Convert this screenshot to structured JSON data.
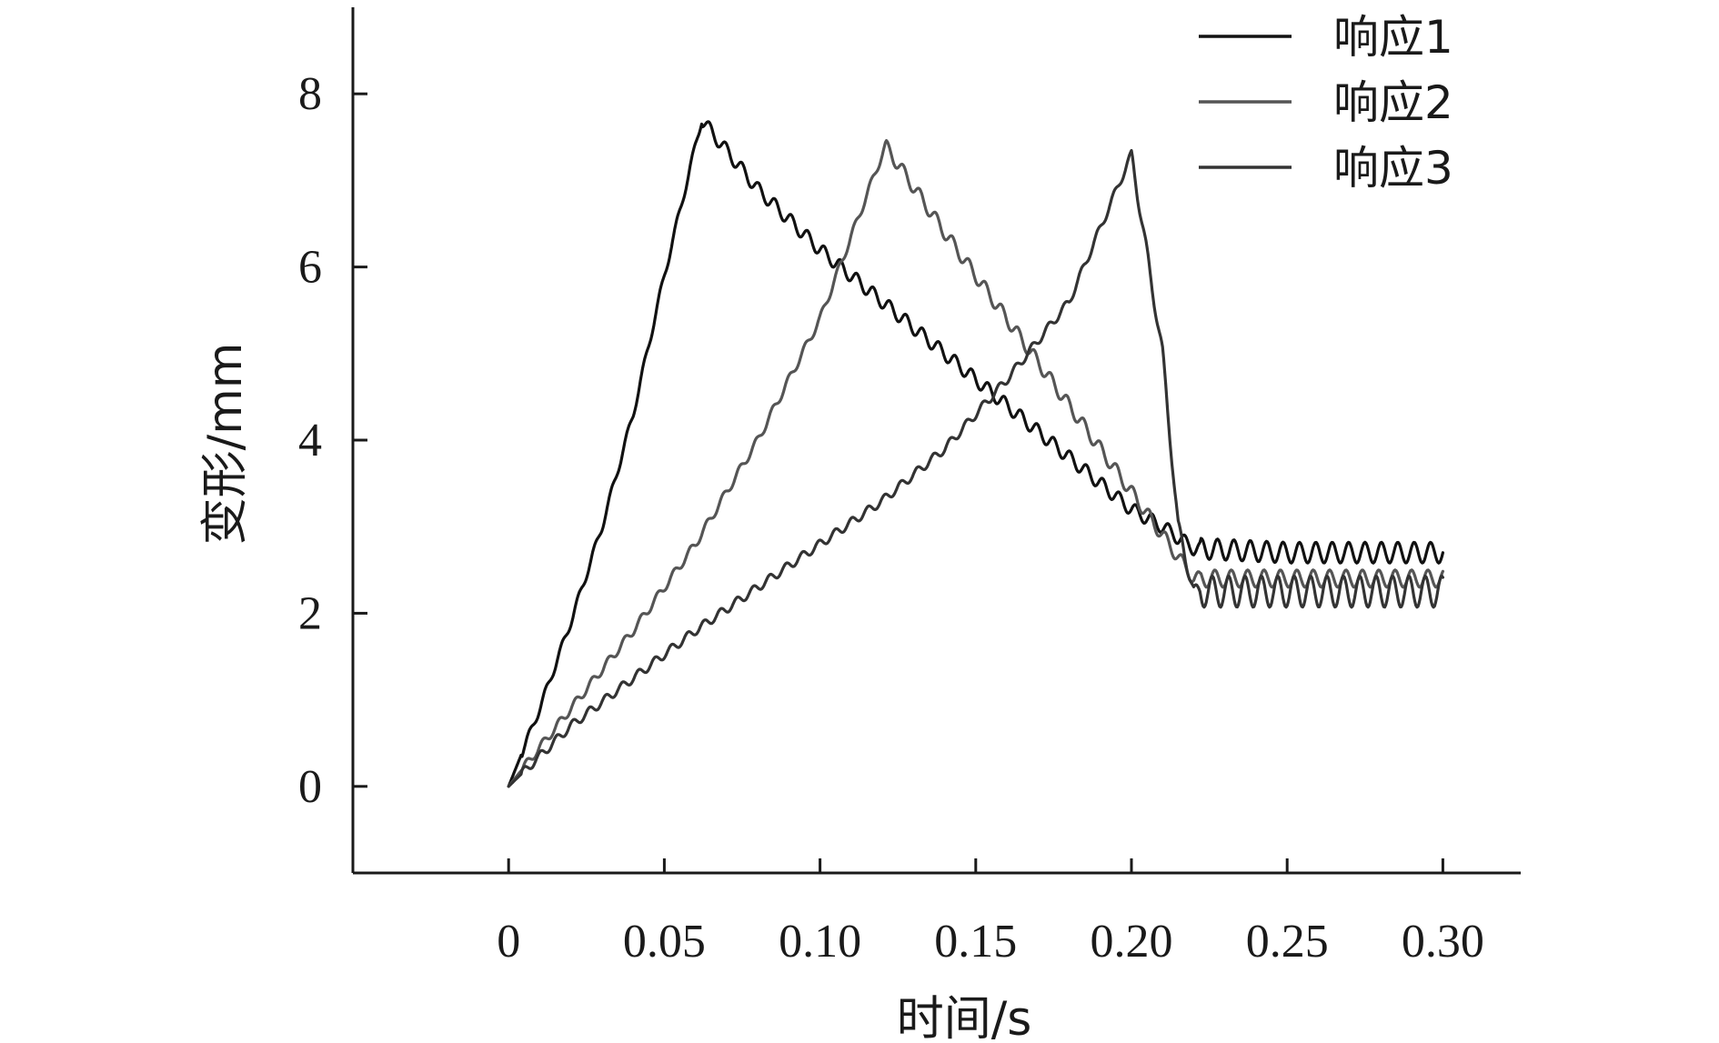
{
  "chart_data": {
    "type": "line",
    "xlabel": "时间/s",
    "ylabel": "变形/mm",
    "xlim": [
      -0.05,
      0.325
    ],
    "ylim": [
      -1,
      9
    ],
    "xticks": [
      0,
      0.05,
      0.1,
      0.15,
      0.2,
      0.25,
      0.3
    ],
    "xtick_labels": [
      "0",
      "0.05",
      "0.10",
      "0.15",
      "0.20",
      "0.25",
      "0.30"
    ],
    "yticks": [
      0,
      2,
      4,
      6,
      8
    ],
    "ytick_labels": [
      "0",
      "2",
      "4",
      "6",
      "8"
    ],
    "grid": false,
    "legend_position": "top-right",
    "series": [
      {
        "name": "响应1",
        "color": "#111111",
        "peak_time": 0.062,
        "peak_value": 7.7,
        "x": [
          0,
          0.01,
          0.02,
          0.03,
          0.04,
          0.05,
          0.062,
          0.08,
          0.1,
          0.12,
          0.14,
          0.16,
          0.18,
          0.2,
          0.21,
          0.22,
          0.25,
          0.3
        ],
        "y": [
          0,
          0.9,
          1.9,
          3.0,
          4.3,
          5.9,
          7.7,
          6.9,
          6.2,
          5.6,
          5.0,
          4.4,
          3.8,
          3.2,
          3.0,
          2.75,
          2.7,
          2.7
        ]
      },
      {
        "name": "响应2",
        "color": "#555555",
        "peak_time": 0.121,
        "peak_value": 7.4,
        "x": [
          0,
          0.02,
          0.04,
          0.06,
          0.08,
          0.1,
          0.121,
          0.14,
          0.16,
          0.18,
          0.2,
          0.22,
          0.25,
          0.3
        ],
        "y": [
          0,
          0.9,
          1.8,
          2.8,
          4.0,
          5.4,
          7.4,
          6.4,
          5.4,
          4.4,
          3.4,
          2.4,
          2.4,
          2.4
        ]
      },
      {
        "name": "响应3",
        "color": "#333333",
        "peak_time": 0.2,
        "peak_value": 7.3,
        "x": [
          0,
          0.02,
          0.04,
          0.06,
          0.08,
          0.1,
          0.12,
          0.14,
          0.16,
          0.18,
          0.2,
          0.21,
          0.215,
          0.22,
          0.25,
          0.3
        ],
        "y": [
          0,
          0.7,
          1.25,
          1.8,
          2.3,
          2.8,
          3.3,
          3.9,
          4.7,
          5.6,
          7.3,
          5.0,
          3.0,
          2.25,
          2.25,
          2.25
        ]
      }
    ]
  }
}
